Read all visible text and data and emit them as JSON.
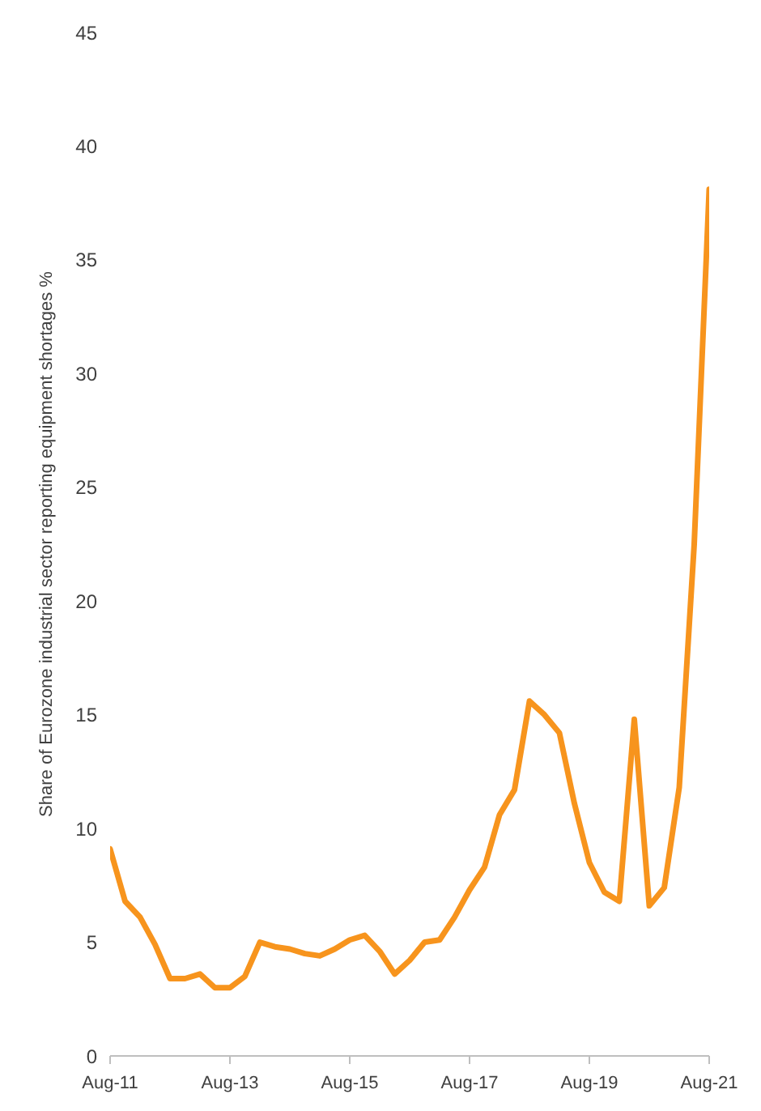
{
  "chart_data": {
    "type": "line",
    "ylabel": "Share of Eurozone industrial sector reporting equipment shortages %",
    "categories": [
      "Aug-11",
      null,
      null,
      null,
      null,
      null,
      null,
      null,
      "Aug-13",
      null,
      null,
      null,
      null,
      null,
      null,
      null,
      "Aug-15",
      null,
      null,
      null,
      null,
      null,
      null,
      null,
      "Aug-17",
      null,
      null,
      null,
      null,
      null,
      null,
      null,
      "Aug-19",
      null,
      null,
      null,
      null,
      null,
      null,
      null,
      "Aug-21"
    ],
    "series": [
      {
        "color": "#f7941d",
        "values": [
          9.1,
          6.8,
          6.1,
          4.9,
          3.4,
          3.4,
          3.6,
          3.0,
          3.0,
          3.5,
          5.0,
          4.8,
          4.7,
          4.5,
          4.4,
          4.7,
          5.1,
          5.3,
          4.6,
          3.6,
          4.2,
          5.0,
          5.1,
          6.1,
          7.3,
          8.3,
          10.6,
          11.7,
          15.6,
          15.0,
          14.2,
          11.1,
          8.5,
          7.2,
          6.8,
          14.8,
          6.6,
          7.4,
          11.8,
          22.5,
          38.1
        ]
      }
    ],
    "ylim": [
      0,
      45
    ],
    "yticks": [
      0,
      5,
      10,
      15,
      20,
      25,
      30,
      35,
      40,
      45
    ],
    "grid": false,
    "legend": false,
    "marker": "none",
    "line_style": "solid"
  }
}
